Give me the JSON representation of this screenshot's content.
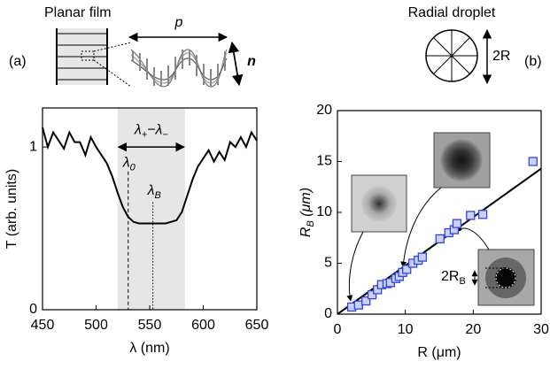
{
  "header": {
    "left_title": "Planar film",
    "left_panel": "(a)",
    "pitch": "p",
    "director": "n",
    "right_title": "Radial droplet",
    "diameter": "2R",
    "right_panel": "(b)"
  },
  "chart_data": [
    {
      "type": "line",
      "xlabel": "λ (nm)",
      "ylabel": "T (arb. units)",
      "x": [
        450,
        455,
        460,
        465,
        470,
        475,
        480,
        485,
        490,
        495,
        500,
        505,
        510,
        515,
        520,
        525,
        530,
        535,
        540,
        545,
        550,
        555,
        560,
        565,
        570,
        575,
        580,
        585,
        590,
        595,
        600,
        605,
        610,
        615,
        620,
        625,
        630,
        635,
        640,
        645,
        650
      ],
      "values": [
        1.12,
        1.0,
        1.09,
        1.04,
        0.99,
        1.09,
        1.03,
        1.03,
        0.95,
        1.06,
        1.0,
        0.95,
        0.9,
        0.82,
        0.72,
        0.63,
        0.57,
        0.54,
        0.53,
        0.53,
        0.53,
        0.53,
        0.53,
        0.53,
        0.54,
        0.55,
        0.6,
        0.7,
        0.8,
        0.88,
        0.93,
        0.98,
        0.91,
        0.97,
        0.92,
        1.03,
        1.0,
        1.06,
        1.0,
        1.09,
        1.04
      ],
      "color": "#000000",
      "band": [
        520,
        583
      ],
      "band_color": "#e6e6e6",
      "band_label": [
        "λ",
        "+",
        "−λ",
        "−"
      ],
      "lambda0": 530,
      "lambda0_label": [
        "λ",
        "0"
      ],
      "lambdaB": 553,
      "lambdaB_label": [
        "λ",
        "B"
      ],
      "xlim": [
        450,
        650
      ],
      "xticks": [
        450,
        500,
        550,
        600,
        650
      ],
      "ylim": [
        0,
        1.24
      ],
      "yticks": [
        0,
        1
      ]
    },
    {
      "type": "scatter",
      "xlabel": "R (μm)",
      "ylabel": [
        "R",
        "B",
        " (μm)"
      ],
      "x": [
        2.1,
        3.1,
        4.2,
        5.1,
        5.9,
        6.5,
        7.3,
        7.8,
        8.6,
        9.1,
        9.6,
        10.2,
        11.1,
        11.9,
        12.5,
        15.1,
        16.4,
        17.2,
        17.6,
        19.6,
        21.4,
        28.8
      ],
      "values": [
        0.7,
        0.9,
        1.3,
        1.9,
        2.4,
        2.9,
        3.0,
        3.1,
        3.5,
        3.7,
        4.1,
        4.4,
        5.0,
        5.3,
        5.6,
        7.4,
        8.0,
        8.3,
        8.9,
        9.7,
        9.8,
        15.0
      ],
      "color": "#3344dd",
      "fit": {
        "x": [
          0,
          30
        ],
        "values": [
          0,
          14.3
        ],
        "color": "#000000"
      },
      "inset_label": [
        "2R",
        "B"
      ],
      "xlim": [
        0,
        30
      ],
      "xticks": [
        0,
        10,
        20,
        30
      ],
      "ylim": [
        0,
        20
      ],
      "yticks": [
        0,
        5,
        10,
        15,
        20
      ]
    }
  ]
}
